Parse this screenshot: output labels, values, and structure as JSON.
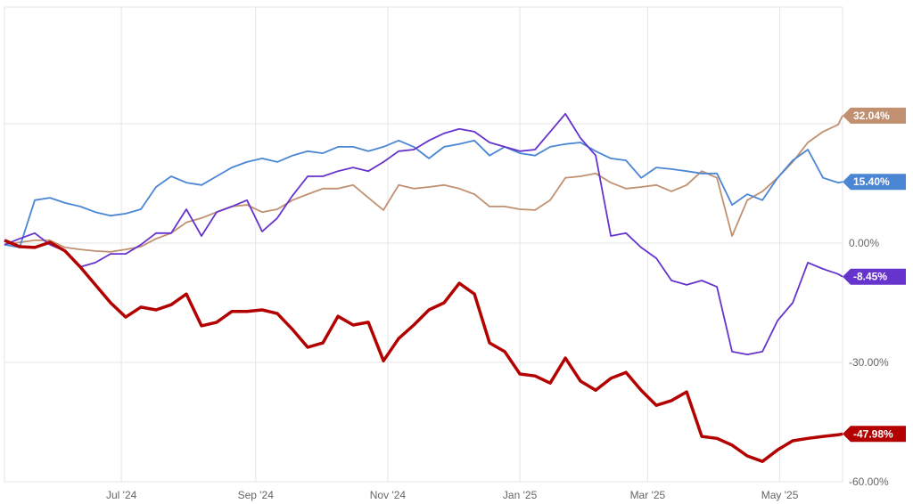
{
  "chart_data": {
    "type": "line",
    "title": "",
    "xlabel": "",
    "ylabel": "",
    "ylim": [
      -60,
      60
    ],
    "y_tick_values": [
      0,
      -30,
      -60
    ],
    "y_tick_labels": [
      "0.00%",
      "-30.00%",
      "-60.00%"
    ],
    "y_grid_values": [
      30,
      0,
      -30,
      -60
    ],
    "x_tick_dates": [
      "2024-07-01",
      "2024-09-01",
      "2024-11-01",
      "2025-01-01",
      "2025-03-01",
      "2025-05-01"
    ],
    "x_tick_labels": [
      "Jul '24",
      "Sep '24",
      "Nov '24",
      "Jan '25",
      "Mar '25",
      "May '25"
    ],
    "xlim": [
      "2024-05-08",
      "2025-05-30"
    ],
    "grid": true,
    "legend": "none",
    "x": [
      "2024-05-08",
      "2024-05-15",
      "2024-05-22",
      "2024-05-29",
      "2024-06-05",
      "2024-06-12",
      "2024-06-19",
      "2024-06-26",
      "2024-07-03",
      "2024-07-10",
      "2024-07-17",
      "2024-07-24",
      "2024-07-31",
      "2024-08-07",
      "2024-08-14",
      "2024-08-21",
      "2024-08-28",
      "2024-09-04",
      "2024-09-11",
      "2024-09-18",
      "2024-09-25",
      "2024-10-02",
      "2024-10-09",
      "2024-10-16",
      "2024-10-23",
      "2024-10-30",
      "2024-11-06",
      "2024-11-13",
      "2024-11-20",
      "2024-11-27",
      "2024-12-04",
      "2024-12-11",
      "2024-12-18",
      "2024-12-25",
      "2025-01-01",
      "2025-01-08",
      "2025-01-15",
      "2025-01-22",
      "2025-01-29",
      "2025-02-05",
      "2025-02-12",
      "2025-02-19",
      "2025-02-26",
      "2025-03-05",
      "2025-03-12",
      "2025-03-19",
      "2025-03-26",
      "2025-04-02",
      "2025-04-09",
      "2025-04-16",
      "2025-04-23",
      "2025-04-30",
      "2025-05-07",
      "2025-05-14",
      "2025-05-21",
      "2025-05-28",
      "2025-05-30"
    ],
    "series": [
      {
        "color": "#c09070",
        "width": 1.8,
        "end_label": "32.04%",
        "values": [
          -0.4,
          0.2,
          0.7,
          0.7,
          -1.1,
          -1.6,
          -2.0,
          -2.2,
          -1.6,
          -0.9,
          1.1,
          2.5,
          5.2,
          6.3,
          7.8,
          9.2,
          9.6,
          7.8,
          8.5,
          10.8,
          12.3,
          13.7,
          13.7,
          14.6,
          11.4,
          8.3,
          14.6,
          13.7,
          14.1,
          14.6,
          13.7,
          12.3,
          9.2,
          9.2,
          8.5,
          8.3,
          10.8,
          16.4,
          16.8,
          17.5,
          15.2,
          13.7,
          14.1,
          14.6,
          13.0,
          14.6,
          18.1,
          16.4,
          1.8,
          10.8,
          13.0,
          16.4,
          20.4,
          25.3,
          28.0,
          29.8,
          32.04
        ]
      },
      {
        "color": "#4a86d4",
        "width": 1.8,
        "end_label": "15.40%",
        "values": [
          -0.4,
          -1.1,
          10.8,
          11.4,
          10.1,
          9.2,
          7.8,
          6.9,
          7.4,
          8.5,
          14.1,
          16.8,
          15.2,
          14.6,
          16.8,
          19.0,
          20.4,
          21.3,
          20.4,
          22.0,
          23.1,
          22.6,
          24.2,
          24.2,
          23.1,
          24.2,
          25.8,
          24.2,
          21.3,
          24.2,
          24.9,
          25.8,
          22.0,
          24.2,
          22.6,
          22.0,
          24.2,
          24.9,
          25.3,
          23.1,
          21.3,
          20.8,
          16.4,
          19.0,
          18.6,
          18.1,
          17.5,
          17.5,
          9.6,
          12.3,
          10.8,
          16.4,
          20.8,
          23.5,
          16.4,
          15.2,
          15.4
        ]
      },
      {
        "color": "#6633cc",
        "width": 1.8,
        "end_label": "-8.45%",
        "values": [
          -0.4,
          1.1,
          2.5,
          -0.4,
          -2.0,
          -6.0,
          -4.9,
          -2.7,
          -2.7,
          -0.4,
          2.5,
          2.5,
          8.5,
          1.8,
          7.8,
          9.2,
          10.8,
          2.9,
          6.3,
          11.9,
          16.8,
          16.8,
          18.1,
          19.0,
          18.1,
          20.4,
          23.1,
          23.5,
          25.8,
          27.6,
          28.7,
          28.0,
          25.3,
          24.2,
          23.1,
          23.5,
          28.0,
          32.5,
          26.4,
          22.0,
          1.8,
          2.5,
          -1.1,
          -3.8,
          -9.4,
          -10.5,
          -9.4,
          -11.0,
          -27.3,
          -28.0,
          -27.3,
          -19.5,
          -15.0,
          -4.9,
          -6.5,
          -7.8,
          -8.45
        ]
      },
      {
        "color": "#b30000",
        "width": 3.5,
        "end_label": "-47.98%",
        "values": [
          0.7,
          -0.9,
          -1.1,
          0.2,
          -2.0,
          -6.0,
          -10.5,
          -15.0,
          -18.6,
          -16.1,
          -16.8,
          -15.5,
          -12.8,
          -20.8,
          -19.9,
          -17.2,
          -17.2,
          -16.8,
          -17.7,
          -21.7,
          -26.2,
          -25.1,
          -18.4,
          -20.6,
          -19.9,
          -29.6,
          -24.0,
          -20.6,
          -16.8,
          -15.0,
          -10.1,
          -12.8,
          -25.1,
          -27.3,
          -32.9,
          -33.4,
          -35.2,
          -28.9,
          -34.7,
          -37.0,
          -34.0,
          -32.5,
          -37.0,
          -40.8,
          -39.6,
          -37.4,
          -48.6,
          -49.1,
          -50.8,
          -53.5,
          -54.9,
          -52.0,
          -49.7,
          -49.1,
          -48.6,
          -48.2,
          -47.98
        ]
      }
    ]
  }
}
